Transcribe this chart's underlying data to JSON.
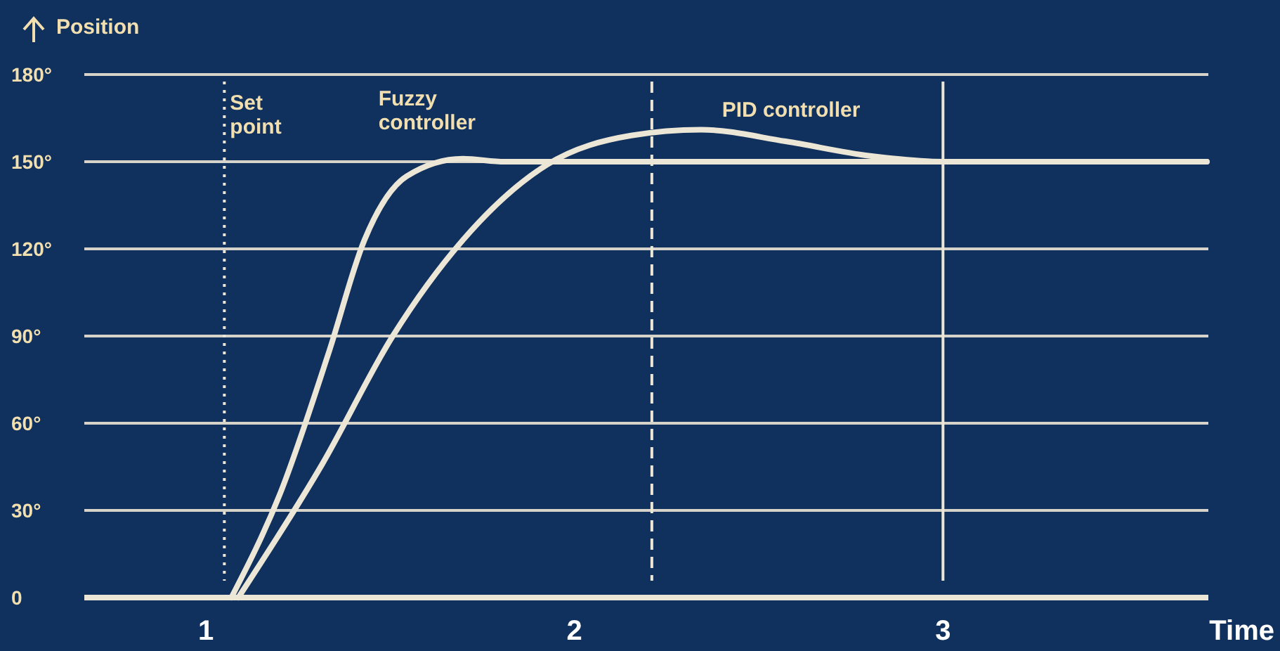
{
  "chart_data": {
    "type": "line",
    "ylabel": "Position",
    "xlabel": "Time",
    "xlim": [
      0.67,
      3.72
    ],
    "xticks": [
      1,
      2,
      3
    ],
    "ylim": [
      0,
      180
    ],
    "yticks": [
      0,
      {
        "value": 30,
        "label": "30°"
      },
      {
        "value": 60,
        "label": "60°"
      },
      {
        "value": 90,
        "label": "90°"
      },
      {
        "value": 120,
        "label": "120°"
      },
      {
        "value": 150,
        "label": "150°"
      },
      {
        "value": 180,
        "label": "180°"
      }
    ],
    "grid": "y",
    "marker": "none",
    "line_style": "solid",
    "series": [
      {
        "name": "Fuzzy controller",
        "color": "#ece6d6",
        "x": [
          1.069,
          1.202,
          1.335,
          1.43,
          1.545,
          1.697,
          1.811,
          3.716
        ],
        "values": [
          0,
          36,
          85,
          123,
          145,
          151,
          150,
          150
        ]
      },
      {
        "name": "PID controller",
        "color": "#ece6d6",
        "x": [
          1.088,
          1.316,
          1.507,
          1.697,
          1.926,
          2.154,
          2.343,
          2.573,
          2.802,
          3.0,
          3.716
        ],
        "values": [
          0,
          46,
          90,
          123,
          149,
          159,
          161,
          157,
          152,
          150,
          150
        ]
      }
    ],
    "ref_lines": [
      {
        "axis": "x",
        "value": 1.05,
        "label": "Set point",
        "line_style": "dotted",
        "color": "#ece6d6"
      },
      {
        "axis": "x",
        "value": 2.21,
        "line_style": "dashed",
        "color": "#ece6d6"
      },
      {
        "axis": "x",
        "value": 3.0,
        "line_style": "solid",
        "color": "#ece6d6"
      }
    ]
  }
}
